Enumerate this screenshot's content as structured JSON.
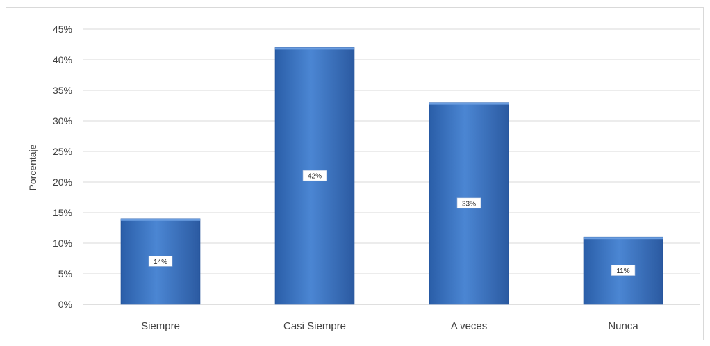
{
  "chart_data": {
    "type": "bar",
    "title": "",
    "xlabel": "",
    "ylabel": "Porcentaje",
    "ylim": [
      0,
      45
    ],
    "yticks": [
      0,
      5,
      10,
      15,
      20,
      25,
      30,
      35,
      40,
      45
    ],
    "ytick_suffix": "%",
    "grid": true,
    "categories": [
      "Siempre",
      "Casi Siempre",
      "A veces",
      "Nunca"
    ],
    "values": [
      14,
      42,
      33,
      11
    ],
    "data_labels": [
      "14%",
      "42%",
      "33%",
      "11%"
    ],
    "colors": {
      "bar_light": "#4f8ad6",
      "bar_dark": "#1f4e96",
      "grid": "#d9d9d9",
      "axis": "#bfbfbf"
    }
  }
}
